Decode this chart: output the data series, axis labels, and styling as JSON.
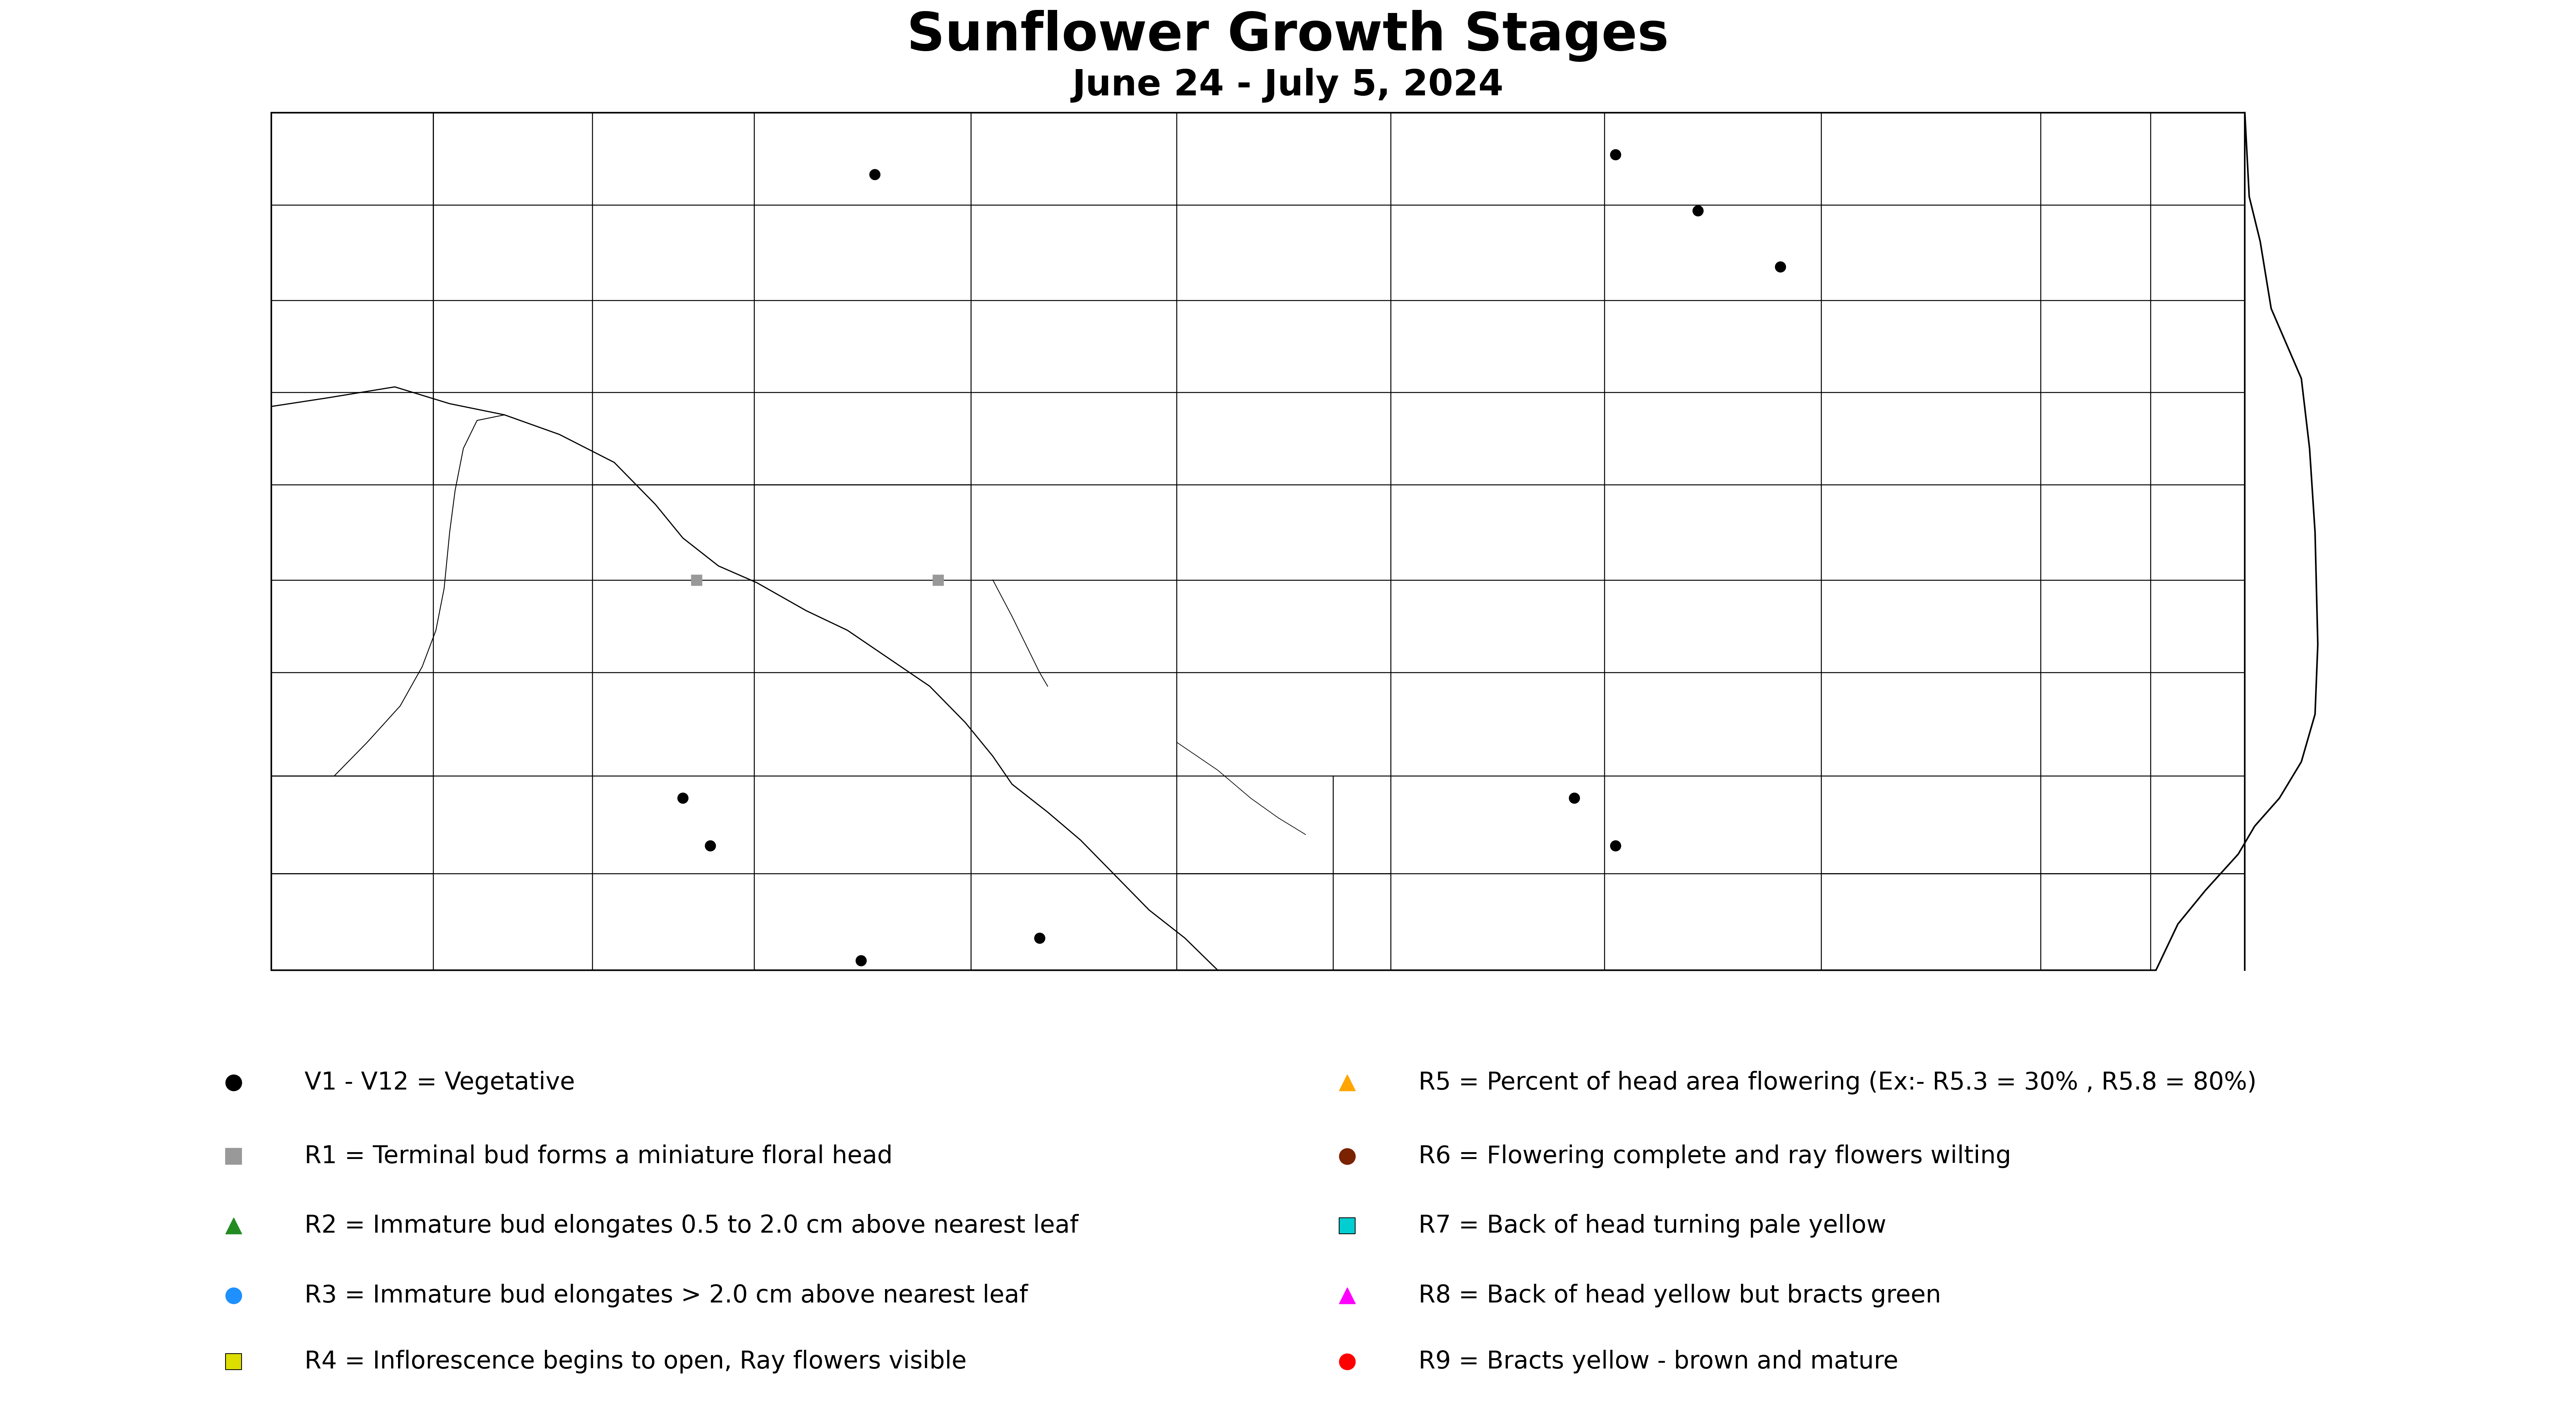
{
  "title": "Sunflower Growth Stages",
  "subtitle": "June 24 - July 5, 2024",
  "title_fontsize": 100,
  "subtitle_fontsize": 68,
  "background_color": "#ffffff",
  "map_edgecolor": "#000000",
  "map_linewidth": 3.0,
  "county_linewidth": 1.8,
  "xlim": [
    -104.1,
    -96.4
  ],
  "ylim": [
    45.87,
    49.1
  ],
  "markers": [
    {
      "lon": -101.85,
      "lat": 48.78,
      "marker": "o",
      "color": "#000000",
      "size": 400
    },
    {
      "lon": -99.15,
      "lat": 48.85,
      "marker": "o",
      "color": "#000000",
      "size": 400
    },
    {
      "lon": -98.85,
      "lat": 48.65,
      "marker": "o",
      "color": "#000000",
      "size": 400
    },
    {
      "lon": -98.55,
      "lat": 48.45,
      "marker": "o",
      "color": "#000000",
      "size": 400
    },
    {
      "lon": -102.5,
      "lat": 47.33,
      "marker": "s",
      "color": "#999999",
      "size": 400
    },
    {
      "lon": -101.62,
      "lat": 47.33,
      "marker": "s",
      "color": "#999999",
      "size": 400
    },
    {
      "lon": -102.55,
      "lat": 46.55,
      "marker": "o",
      "color": "#000000",
      "size": 400
    },
    {
      "lon": -102.45,
      "lat": 46.38,
      "marker": "o",
      "color": "#000000",
      "size": 400
    },
    {
      "lon": -99.3,
      "lat": 46.55,
      "marker": "o",
      "color": "#000000",
      "size": 400
    },
    {
      "lon": -99.15,
      "lat": 46.38,
      "marker": "o",
      "color": "#000000",
      "size": 400
    },
    {
      "lon": -101.25,
      "lat": 46.05,
      "marker": "o",
      "color": "#000000",
      "size": 400
    },
    {
      "lon": -101.9,
      "lat": 45.97,
      "marker": "o",
      "color": "#000000",
      "size": 400
    }
  ],
  "legend_items_left": [
    {
      "label": "V1 - V12 = Vegetative",
      "marker": "o",
      "color": "#000000"
    },
    {
      "label": "R1 = Terminal bud forms a miniature floral head",
      "marker": "s",
      "color": "#999999"
    },
    {
      "label": "R2 = Immature bud elongates 0.5 to 2.0 cm above nearest leaf",
      "marker": "^",
      "color": "#228B22"
    },
    {
      "label": "R3 = Immature bud elongates > 2.0 cm above nearest leaf",
      "marker": "o",
      "color": "#1E90FF"
    },
    {
      "label": "R4 = Inflorescence begins to open, Ray flowers visible",
      "marker": "s",
      "color": "#DDDD00"
    }
  ],
  "legend_items_right": [
    {
      "label": "R5 = Percent of head area flowering (Ex:- R5.3 = 30% , R5.8 = 80%)",
      "marker": "^",
      "color": "#FFA500"
    },
    {
      "label": "R6 = Flowering complete and ray flowers wilting",
      "marker": "o",
      "color": "#7B2200"
    },
    {
      "label": "R7 = Back of head turning pale yellow",
      "marker": "s",
      "color": "#00CED1"
    },
    {
      "label": "R8 = Back of head yellow but bracts green",
      "marker": "^",
      "color": "#FF00FF"
    },
    {
      "label": "R9 = Bracts yellow - brown and mature",
      "marker": "o",
      "color": "#FF0000"
    }
  ],
  "legend_marker_size": 900,
  "legend_font_size": 46
}
